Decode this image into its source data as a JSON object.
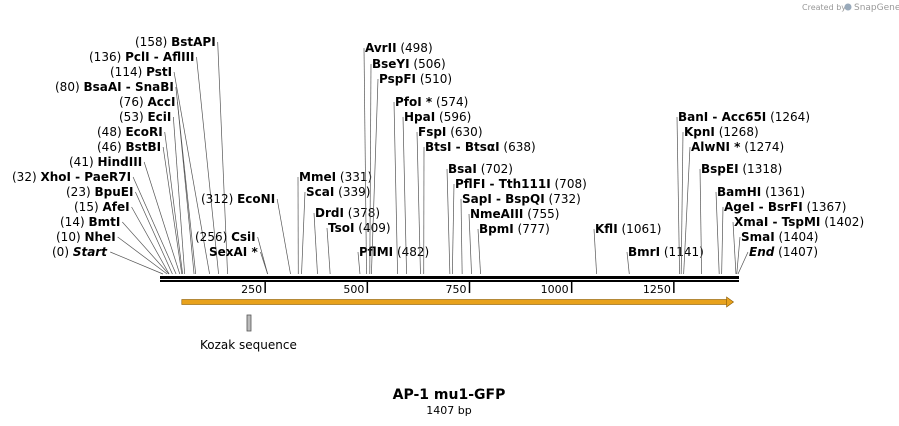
{
  "credit": {
    "prefix": "Created by",
    "brand": "SnapGene"
  },
  "title": "AP-1 mu1-GFP",
  "length_label": "1407 bp",
  "sequence_length": 1407,
  "ruler": {
    "ticks": [
      250,
      500,
      750,
      1000,
      1250
    ]
  },
  "features": [
    {
      "name": "orf-arrow",
      "start": 68,
      "end": 1401,
      "color": "#e8a21c",
      "label": ""
    },
    {
      "name": "kozak",
      "start": 222,
      "end": 232,
      "color": "#bbbbbb",
      "label": "Kozak sequence"
    }
  ],
  "sites": [
    {
      "label": "(0)",
      "enzyme": "Start",
      "pos": 0,
      "style": "ital",
      "posFirst": true
    },
    {
      "label": "(10)",
      "enzyme": "NheI",
      "pos": 10,
      "posFirst": true
    },
    {
      "label": "(14)",
      "enzyme": "BmtI",
      "pos": 14,
      "posFirst": true
    },
    {
      "label": "(15)",
      "enzyme": "AfeI",
      "pos": 15,
      "posFirst": true
    },
    {
      "label": "(23)",
      "enzyme": "BpuEI",
      "pos": 23,
      "posFirst": true
    },
    {
      "label": "(32)",
      "enzyme": "XhoI  - PaeR7I",
      "pos": 32,
      "posFirst": true
    },
    {
      "label": "(41)",
      "enzyme": "HindIII",
      "pos": 41,
      "posFirst": true
    },
    {
      "label": "(46)",
      "enzyme": "BstBI",
      "pos": 46,
      "posFirst": true
    },
    {
      "label": "(48)",
      "enzyme": "EcoRI",
      "pos": 48,
      "posFirst": true
    },
    {
      "label": "(53)",
      "enzyme": "EciI",
      "pos": 53,
      "posFirst": true
    },
    {
      "label": "(76)",
      "enzyme": "AccI",
      "pos": 76,
      "posFirst": true
    },
    {
      "label": "(80)",
      "enzyme": "BsaAI  - SnaBI",
      "pos": 80,
      "posFirst": true
    },
    {
      "label": "(114)",
      "enzyme": "PstI",
      "pos": 114,
      "posFirst": true
    },
    {
      "label": "(136)",
      "enzyme": "PclI  - AflIII",
      "pos": 136,
      "posFirst": true
    },
    {
      "label": "(158)",
      "enzyme": "BstAPI",
      "pos": 158,
      "posFirst": true
    },
    {
      "label": "(256)",
      "enzyme": "CsiI",
      "pos": 256,
      "posFirst": true
    },
    {
      "label": "(312)",
      "enzyme": "EcoNI",
      "pos": 312,
      "posFirst": true
    },
    {
      "label": "",
      "enzyme": "SexAI *",
      "pos": 256,
      "posFirst": true
    },
    {
      "label": "(331)",
      "enzyme": "MmeI",
      "pos": 331,
      "posFirst": false
    },
    {
      "label": "(339)",
      "enzyme": "ScaI",
      "pos": 339,
      "posFirst": false
    },
    {
      "label": "(378)",
      "enzyme": "DrdI",
      "pos": 378,
      "posFirst": false
    },
    {
      "label": "(409)",
      "enzyme": "TsoI",
      "pos": 409,
      "posFirst": false
    },
    {
      "label": "(482)",
      "enzyme": "PflMI",
      "pos": 482,
      "posFirst": false
    },
    {
      "label": "(498)",
      "enzyme": "AvrII",
      "pos": 498,
      "posFirst": false
    },
    {
      "label": "(506)",
      "enzyme": "BseYI",
      "pos": 506,
      "posFirst": false
    },
    {
      "label": "(510)",
      "enzyme": "PspFI",
      "pos": 510,
      "posFirst": false
    },
    {
      "label": "(574)",
      "enzyme": "PfoI *",
      "pos": 574,
      "posFirst": false
    },
    {
      "label": "(596)",
      "enzyme": "HpaI",
      "pos": 596,
      "posFirst": false
    },
    {
      "label": "(630)",
      "enzyme": "FspI",
      "pos": 630,
      "posFirst": false
    },
    {
      "label": "(638)",
      "enzyme": "BtsI  - BtsαI",
      "pos": 638,
      "posFirst": false
    },
    {
      "label": "(702)",
      "enzyme": "BsaI",
      "pos": 702,
      "posFirst": false
    },
    {
      "label": "(708)",
      "enzyme": "PflFI  - Tth111I",
      "pos": 708,
      "posFirst": false
    },
    {
      "label": "(732)",
      "enzyme": "SapI  - BspQI",
      "pos": 732,
      "posFirst": false
    },
    {
      "label": "(755)",
      "enzyme": "NmeAIII",
      "pos": 755,
      "posFirst": false
    },
    {
      "label": "(777)",
      "enzyme": "BpmI",
      "pos": 777,
      "posFirst": false
    },
    {
      "label": "(1061)",
      "enzyme": "KflI",
      "pos": 1061,
      "posFirst": false
    },
    {
      "label": "(1141)",
      "enzyme": "BmrI",
      "pos": 1141,
      "posFirst": false
    },
    {
      "label": "(1264)",
      "enzyme": "BanI  - Acc65I",
      "pos": 1264,
      "posFirst": false
    },
    {
      "label": "(1268)",
      "enzyme": "KpnI",
      "pos": 1268,
      "posFirst": false
    },
    {
      "label": "(1274)",
      "enzyme": "AlwNI *",
      "pos": 1274,
      "posFirst": false
    },
    {
      "label": "(1318)",
      "enzyme": "BspEI",
      "pos": 1318,
      "posFirst": false
    },
    {
      "label": "(1361)",
      "enzyme": "BamHI",
      "pos": 1361,
      "posFirst": false
    },
    {
      "label": "(1367)",
      "enzyme": "AgeI  - BsrFI",
      "pos": 1367,
      "posFirst": false
    },
    {
      "label": "(1402)",
      "enzyme": "XmaI  - TspMI",
      "pos": 1402,
      "posFirst": false
    },
    {
      "label": "(1404)",
      "enzyme": "SmaI",
      "pos": 1404,
      "posFirst": false
    },
    {
      "label": "(1407)",
      "enzyme": "End",
      "pos": 1407,
      "style": "ital",
      "posFirst": false
    }
  ]
}
